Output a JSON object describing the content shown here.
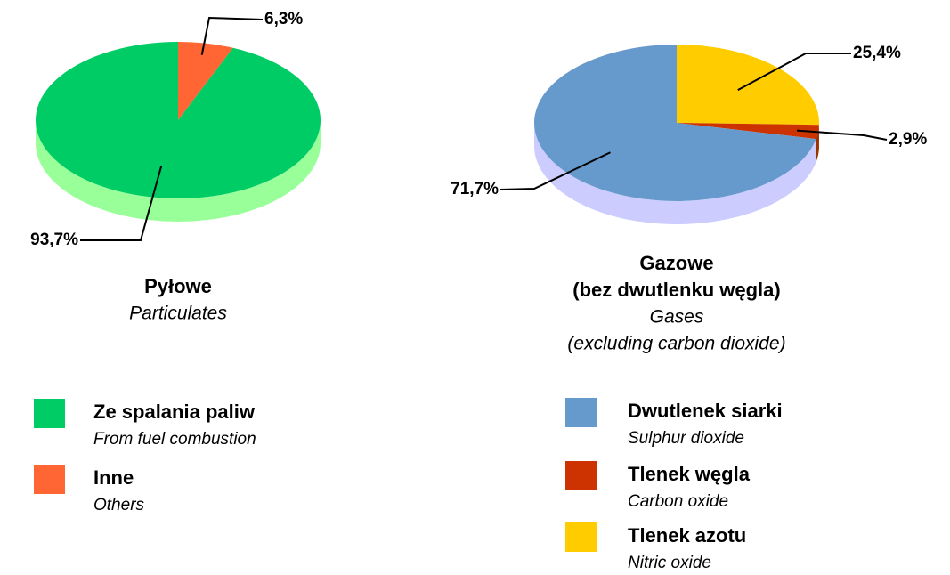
{
  "chart_data": [
    {
      "type": "pie",
      "title": [
        "Pyłowe"
      ],
      "subtitle": [
        "Particulates"
      ],
      "categories": [
        "Ze spalania paliw",
        "Inne"
      ],
      "category_translations": [
        "From fuel combustion",
        "Others"
      ],
      "values": [
        93.7,
        6.3
      ],
      "value_labels": [
        "93,7%",
        "6,3%"
      ],
      "colors": [
        "#00cc66",
        "#ff6633"
      ],
      "side_colors": [
        "#99ff99",
        "#ff9966"
      ]
    },
    {
      "type": "pie",
      "title": [
        "Gazowe",
        "(bez dwutlenku węgla)"
      ],
      "subtitle": [
        "Gases",
        "(excluding carbon dioxide)"
      ],
      "categories": [
        "Dwutlenek siarki",
        "Tlenek węgla",
        "Tlenek azotu"
      ],
      "category_translations": [
        "Sulphur dioxide",
        "Carbon oxide",
        "Nitric oxide"
      ],
      "values": [
        71.7,
        2.9,
        25.4
      ],
      "value_labels": [
        "71,7%",
        "2,9%",
        "25,4%"
      ],
      "colors": [
        "#6699cc",
        "#cc3300",
        "#ffcc00"
      ],
      "side_colors": [
        "#ccccff",
        "#993300",
        "#cc9900"
      ]
    }
  ]
}
